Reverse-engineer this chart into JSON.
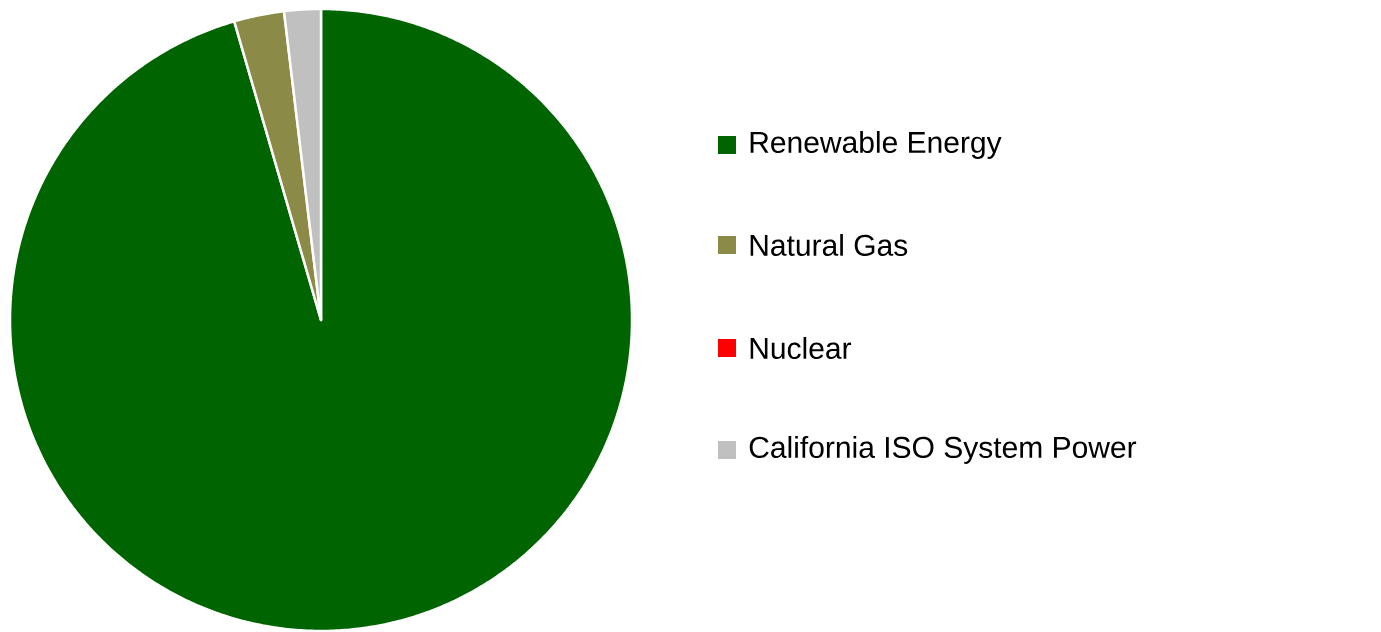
{
  "chart_data": {
    "type": "pie",
    "categories": [
      "Renewable Energy",
      "Natural Gas",
      "Nuclear",
      "California ISO System Power"
    ],
    "values": [
      95.5,
      2.6,
      0,
      1.9
    ],
    "colors": [
      "#006400",
      "#8b8b47",
      "#ff0000",
      "#c0c0c0"
    ],
    "legend": "right"
  }
}
